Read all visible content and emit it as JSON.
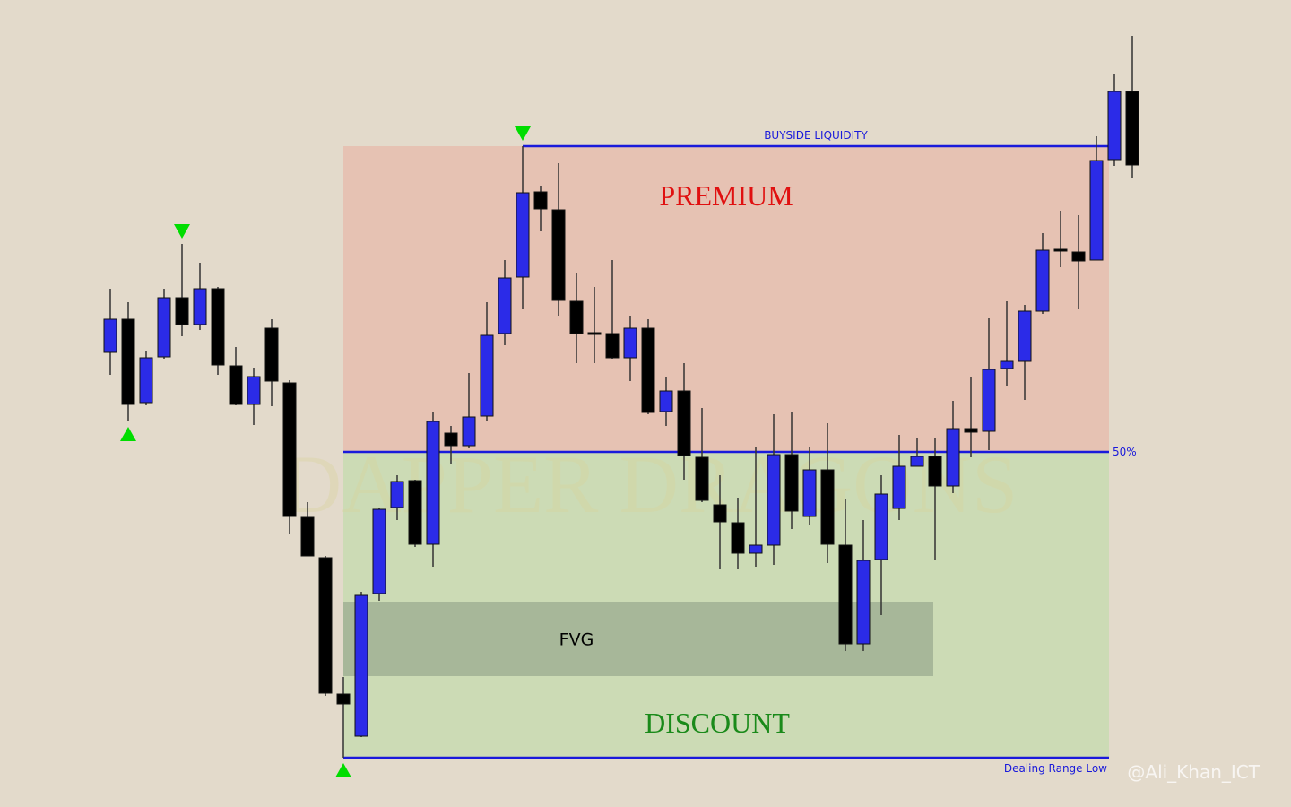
{
  "chart_data": {
    "type": "candlestick",
    "open": [
      507,
      544,
      451,
      502,
      568,
      538,
      578,
      492,
      449,
      534,
      473,
      323,
      278,
      126,
      79,
      238,
      334,
      364,
      293,
      417,
      403,
      436,
      528,
      591,
      686,
      666,
      564,
      529,
      528,
      501,
      534,
      441,
      464,
      390,
      337,
      317,
      283,
      292,
      393,
      324,
      376,
      292,
      182,
      276,
      333,
      380,
      391,
      358,
      422,
      419,
      489,
      497,
      553,
      622,
      619,
      610,
      722,
      798
    ],
    "high": [
      578,
      563,
      508,
      578,
      628,
      607,
      580,
      513,
      490,
      544,
      476,
      340,
      280,
      145,
      240,
      333,
      370,
      365,
      440,
      425,
      484,
      563,
      610,
      737,
      693,
      718,
      595,
      580,
      610,
      548,
      544,
      480,
      495,
      445,
      370,
      345,
      402,
      438,
      440,
      402,
      428,
      344,
      320,
      370,
      415,
      412,
      412,
      453,
      480,
      545,
      564,
      560,
      640,
      665,
      660,
      748,
      818,
      860
    ],
    "low": [
      482,
      430,
      448,
      500,
      525,
      532,
      482,
      448,
      426,
      447,
      305,
      280,
      124,
      55,
      78,
      230,
      320,
      290,
      268,
      382,
      400,
      430,
      515,
      555,
      642,
      548,
      495,
      495,
      500,
      475,
      438,
      425,
      365,
      340,
      265,
      265,
      268,
      270,
      310,
      315,
      272,
      174,
      174,
      214,
      320,
      380,
      275,
      350,
      390,
      398,
      470,
      454,
      550,
      602,
      555,
      610,
      715,
      702
    ],
    "close": [
      544,
      449,
      501,
      568,
      538,
      578,
      493,
      449,
      480,
      475,
      324,
      280,
      127,
      115,
      236,
      332,
      363,
      293,
      430,
      403,
      435,
      526,
      590,
      685,
      667,
      565,
      528,
      527,
      501,
      534,
      440,
      464,
      392,
      342,
      318,
      283,
      292,
      393,
      330,
      376,
      293,
      182,
      275,
      349,
      380,
      391,
      358,
      422,
      418,
      488,
      497,
      553,
      621,
      620,
      609,
      721,
      798,
      716
    ],
    "up_color": "#2b2be8",
    "down_color": "#000000",
    "ylim": [
      0,
      900
    ],
    "swing_highs": [
      4,
      23
    ],
    "swing_lows": [
      1,
      13
    ],
    "marker_color": "#00dd00",
    "zones": [
      {
        "label": "PREMIUM",
        "from": 396,
        "to": 737,
        "color": "#e6c2b3",
        "text_color": "#e01010"
      },
      {
        "label": "DISCOUNT",
        "from": 55,
        "to": 396,
        "color": "#ccdbb5",
        "text_color": "#1a8a1a"
      }
    ],
    "fvg": {
      "label": "FVG",
      "from": 146,
      "to": 229,
      "color": "#a7b799"
    },
    "levels": [
      {
        "label": "BUYSIDE LIQUIDITY",
        "value": 737
      },
      {
        "label": "50%",
        "value": 396
      },
      {
        "label": "Dealing Range Low",
        "value": 55
      }
    ],
    "level_color": "#1a1adb",
    "watermark": "DAPPER DRAGONS",
    "credit": "@Ali_Khan_ICT"
  }
}
